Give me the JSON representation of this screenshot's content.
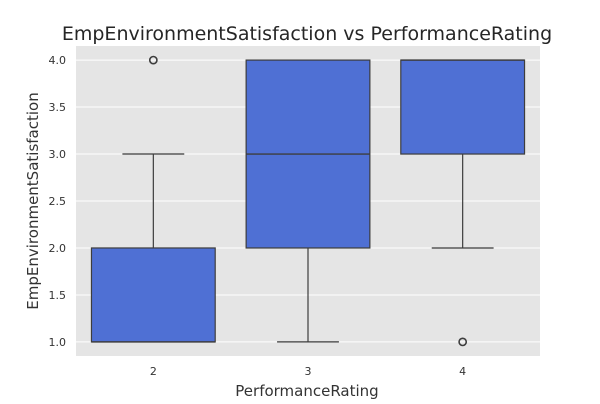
{
  "chart_data": {
    "type": "box",
    "title": "EmpEnvironmentSatisfaction vs PerformanceRating",
    "xlabel": "PerformanceRating",
    "ylabel": "EmpEnvironmentSatisfaction",
    "categories": [
      "2",
      "3",
      "4"
    ],
    "ylim": [
      0.85,
      4.15
    ],
    "yticks": [
      1.0,
      1.5,
      2.0,
      2.5,
      3.0,
      3.5,
      4.0
    ],
    "grid": true,
    "box_color": "#4f70d4",
    "background_color": "#e5e5e5",
    "boxes": [
      {
        "category": "2",
        "whisker_low": 1.0,
        "q1": 1.0,
        "median": 1.0,
        "q3": 2.0,
        "whisker_high": 3.0,
        "outliers": [
          4.0
        ]
      },
      {
        "category": "3",
        "whisker_low": 1.0,
        "q1": 2.0,
        "median": 3.0,
        "q3": 4.0,
        "whisker_high": 4.0,
        "outliers": []
      },
      {
        "category": "4",
        "whisker_low": 2.0,
        "q1": 3.0,
        "median": 4.0,
        "q3": 4.0,
        "whisker_high": 4.0,
        "outliers": [
          1.0
        ]
      }
    ]
  }
}
